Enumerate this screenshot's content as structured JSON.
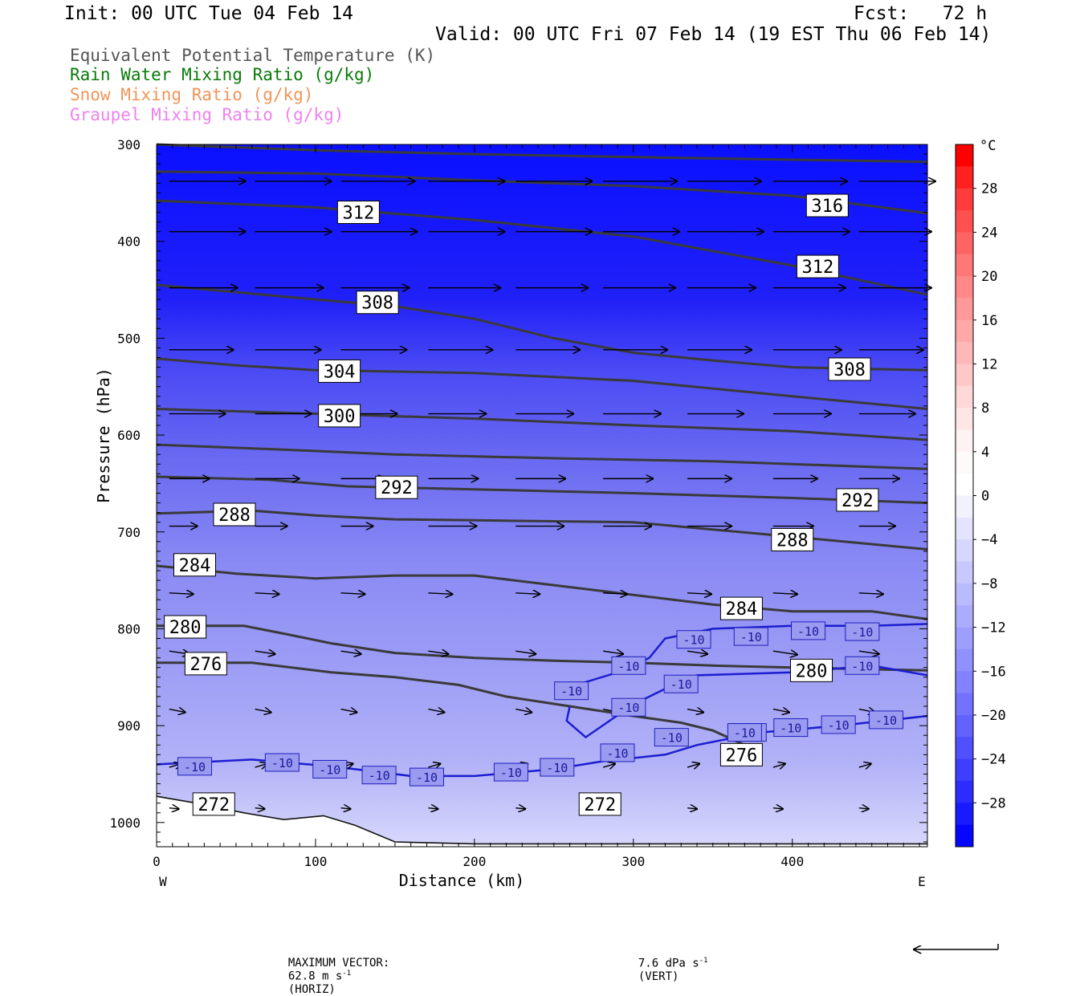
{
  "header": {
    "init": "Init: 00 UTC Tue 04 Feb 14",
    "fcst": "Fcst:   72 h",
    "valid": "Valid: 00 UTC Fri 07 Feb 14 (19 EST Thu 06 Feb 14)"
  },
  "legend": [
    {
      "text": "Equivalent Potential Temperature (K)",
      "color": "#555555"
    },
    {
      "text": "Rain Water Mixing Ratio (g/kg)",
      "color": "#0a7a0a"
    },
    {
      "text": "Snow Mixing Ratio (g/kg)",
      "color": "#f0955a"
    },
    {
      "text": "Graupel Mixing Ratio (g/kg)",
      "color": "#ee82ee"
    }
  ],
  "footer": {
    "max_vector_label": "MAXIMUM VECTOR:",
    "horiz": "62.8 m s",
    "horiz_unit": "(HORIZ)",
    "vert": "7.6 dPa s",
    "vert_unit": "(VERT)",
    "exponent": "-1"
  },
  "chart_data": {
    "type": "heatmap",
    "title": "Equivalent Potential Temperature (K)",
    "xlabel": "Distance (km)",
    "ylabel": "Pressure (hPa)",
    "xlim": [
      0,
      485
    ],
    "ylim": [
      1025,
      300
    ],
    "x_ticks": [
      0,
      100,
      200,
      300,
      400
    ],
    "y_ticks": [
      300,
      400,
      500,
      600,
      700,
      800,
      900,
      1000
    ],
    "x_end_labels": {
      "left": "W",
      "right": "E"
    },
    "colorbar": {
      "unit": "°C",
      "tick_labels": [
        28,
        24,
        20,
        16,
        12,
        8,
        4,
        0,
        -4,
        -8,
        -12,
        -16,
        -20,
        -24,
        -28
      ],
      "levels": [
        32,
        30,
        28,
        26,
        24,
        22,
        20,
        18,
        16,
        14,
        12,
        10,
        8,
        6,
        4,
        2,
        0,
        -2,
        -4,
        -6,
        -8,
        -10,
        -12,
        -14,
        -16,
        -18,
        -20,
        -22,
        -24,
        -26,
        -28,
        -30,
        -32
      ],
      "colors": [
        "#ff0000",
        "#ff2020",
        "#ff3c3c",
        "#ff5050",
        "#ff6464",
        "#ff7878",
        "#ff8888",
        "#ff9898",
        "#ffa8a8",
        "#ffb8b8",
        "#ffc8c8",
        "#ffd8d8",
        "#ffe6e6",
        "#fff2f2",
        "#fffafa",
        "#ffffff",
        "#f2f2ff",
        "#e4e4ff",
        "#d6d6ff",
        "#c8c8ff",
        "#babaff",
        "#acacff",
        "#9e9eff",
        "#9090ff",
        "#8282ff",
        "#7272ff",
        "#6262ff",
        "#5050ff",
        "#3e3eff",
        "#2c2cff",
        "#1a1aff",
        "#0606ff"
      ]
    },
    "theta_e_contours": [
      {
        "value": 272,
        "points": [
          [
            0,
            973
          ],
          [
            25,
            980
          ],
          [
            55,
            990
          ],
          [
            80,
            997
          ],
          [
            105,
            993
          ],
          [
            125,
            1003
          ],
          [
            150,
            1020
          ],
          [
            200,
            1022
          ],
          [
            300,
            1022
          ],
          [
            485,
            1022
          ]
        ]
      },
      {
        "value": 276,
        "points": [
          [
            0,
            835
          ],
          [
            60,
            835
          ],
          [
            110,
            845
          ],
          [
            150,
            850
          ],
          [
            190,
            858
          ],
          [
            220,
            870
          ],
          [
            260,
            880
          ],
          [
            300,
            890
          ],
          [
            330,
            897
          ],
          [
            350,
            905
          ],
          [
            370,
            920
          ]
        ]
      },
      {
        "value": 280,
        "points": [
          [
            0,
            797
          ],
          [
            55,
            797
          ],
          [
            80,
            805
          ],
          [
            110,
            815
          ],
          [
            150,
            825
          ],
          [
            200,
            830
          ],
          [
            250,
            833
          ],
          [
            300,
            835
          ],
          [
            350,
            838
          ],
          [
            400,
            840
          ],
          [
            485,
            843
          ]
        ]
      },
      {
        "value": 284,
        "points": [
          [
            0,
            735
          ],
          [
            50,
            743
          ],
          [
            100,
            748
          ],
          [
            150,
            745
          ],
          [
            200,
            745
          ],
          [
            250,
            755
          ],
          [
            300,
            765
          ],
          [
            350,
            775
          ],
          [
            400,
            782
          ],
          [
            450,
            782
          ],
          [
            485,
            790
          ]
        ]
      },
      {
        "value": 288,
        "points": [
          [
            0,
            681
          ],
          [
            60,
            678
          ],
          [
            100,
            683
          ],
          [
            150,
            687
          ],
          [
            200,
            688
          ],
          [
            300,
            690
          ],
          [
            400,
            705
          ],
          [
            485,
            718
          ]
        ]
      },
      {
        "value": 292,
        "points": [
          [
            0,
            643
          ],
          [
            70,
            646
          ],
          [
            120,
            653
          ],
          [
            200,
            656
          ],
          [
            300,
            660
          ],
          [
            400,
            665
          ],
          [
            485,
            670
          ]
        ]
      },
      {
        "value": 296,
        "points": [
          [
            0,
            610
          ],
          [
            80,
            615
          ],
          [
            150,
            620
          ],
          [
            250,
            624
          ],
          [
            350,
            627
          ],
          [
            485,
            635
          ]
        ]
      },
      {
        "value": 300,
        "points": [
          [
            0,
            573
          ],
          [
            100,
            578
          ],
          [
            200,
            583
          ],
          [
            300,
            590
          ],
          [
            400,
            596
          ],
          [
            485,
            605
          ]
        ]
      },
      {
        "value": 304,
        "points": [
          [
            0,
            521
          ],
          [
            50,
            528
          ],
          [
            100,
            533
          ],
          [
            200,
            536
          ],
          [
            300,
            544
          ],
          [
            400,
            560
          ],
          [
            485,
            573
          ]
        ]
      },
      {
        "value": 308,
        "points": [
          [
            0,
            445
          ],
          [
            100,
            460
          ],
          [
            150,
            467
          ],
          [
            200,
            480
          ],
          [
            250,
            500
          ],
          [
            300,
            515
          ],
          [
            350,
            523
          ],
          [
            400,
            530
          ],
          [
            485,
            533
          ]
        ]
      },
      {
        "value": 312,
        "points": [
          [
            0,
            358
          ],
          [
            100,
            365
          ],
          [
            200,
            378
          ],
          [
            300,
            395
          ],
          [
            400,
            425
          ],
          [
            485,
            455
          ]
        ]
      },
      {
        "value": 316,
        "points": [
          [
            0,
            328
          ],
          [
            100,
            330
          ],
          [
            200,
            337
          ],
          [
            300,
            343
          ],
          [
            400,
            353
          ],
          [
            485,
            371
          ]
        ]
      },
      {
        "value": 320,
        "points": [
          [
            0,
            300
          ],
          [
            100,
            306
          ],
          [
            200,
            310
          ],
          [
            300,
            313
          ],
          [
            485,
            318
          ]
        ]
      }
    ],
    "theta_e_labels": [
      {
        "value": 312,
        "x": 127,
        "p": 370
      },
      {
        "value": 316,
        "x": 422,
        "p": 363
      },
      {
        "value": 312,
        "x": 416,
        "p": 426
      },
      {
        "value": 308,
        "x": 139,
        "p": 463
      },
      {
        "value": 308,
        "x": 436,
        "p": 532
      },
      {
        "value": 304,
        "x": 115,
        "p": 534
      },
      {
        "value": 300,
        "x": 115,
        "p": 580
      },
      {
        "value": 292,
        "x": 151,
        "p": 654
      },
      {
        "value": 292,
        "x": 441,
        "p": 667
      },
      {
        "value": 288,
        "x": 49,
        "p": 682
      },
      {
        "value": 288,
        "x": 400,
        "p": 708
      },
      {
        "value": 284,
        "x": 24,
        "p": 734
      },
      {
        "value": 284,
        "x": 368,
        "p": 779
      },
      {
        "value": 280,
        "x": 18,
        "p": 798
      },
      {
        "value": 280,
        "x": 412,
        "p": 843
      },
      {
        "value": 276,
        "x": 31,
        "p": 836
      },
      {
        "value": 276,
        "x": 368,
        "p": 930
      },
      {
        "value": 272,
        "x": 36,
        "p": 981
      },
      {
        "value": 272,
        "x": 279,
        "p": 981
      }
    ],
    "isotherm_minus10": {
      "value": -10,
      "points": [
        [
          0,
          940
        ],
        [
          60,
          935
        ],
        [
          110,
          942
        ],
        [
          160,
          952
        ],
        [
          200,
          952
        ],
        [
          250,
          945
        ],
        [
          280,
          937
        ],
        [
          320,
          930
        ],
        [
          340,
          920
        ],
        [
          380,
          907
        ],
        [
          430,
          900
        ],
        [
          485,
          890
        ]
      ],
      "upper_points": [
        [
          260,
          880
        ],
        [
          258,
          895
        ],
        [
          270,
          912
        ],
        [
          285,
          895
        ],
        [
          300,
          878
        ],
        [
          320,
          862
        ],
        [
          340,
          848
        ],
        [
          400,
          845
        ],
        [
          450,
          838
        ],
        [
          485,
          848
        ]
      ],
      "top_points": [
        [
          260,
          860
        ],
        [
          290,
          845
        ],
        [
          310,
          830
        ],
        [
          320,
          810
        ],
        [
          350,
          800
        ],
        [
          400,
          797
        ],
        [
          450,
          797
        ],
        [
          485,
          795
        ]
      ],
      "labels": [
        [
          24,
          942
        ],
        [
          79,
          938
        ],
        [
          109,
          945
        ],
        [
          140,
          951
        ],
        [
          170,
          953
        ],
        [
          223,
          948
        ],
        [
          252,
          943
        ],
        [
          290,
          928
        ],
        [
          324,
          912
        ],
        [
          373,
          907
        ],
        [
          399,
          902
        ],
        [
          429,
          899
        ],
        [
          459,
          894
        ],
        [
          261,
          864
        ],
        [
          297,
          881
        ],
        [
          297,
          838
        ],
        [
          330,
          857
        ],
        [
          338,
          811
        ],
        [
          374,
          808
        ],
        [
          410,
          802
        ],
        [
          444,
          803
        ],
        [
          444,
          838
        ],
        [
          370,
          907
        ]
      ]
    },
    "wind_vectors": {
      "rows_p": [
        338,
        390,
        448,
        512,
        578,
        645,
        694,
        763,
        823,
        883,
        943,
        985
      ],
      "x_positions": [
        12,
        66,
        120,
        175,
        230,
        285,
        338,
        392,
        446
      ],
      "lengths": [
        [
          0.95,
          0.95,
          0.92,
          0.95,
          0.95,
          0.92,
          0.92,
          0.92,
          0.95
        ],
        [
          0.95,
          0.95,
          0.95,
          0.95,
          0.95,
          0.95,
          0.95,
          0.95,
          0.9
        ],
        [
          0.85,
          0.85,
          0.85,
          0.9,
          0.9,
          0.9,
          0.85,
          0.9,
          0.9
        ],
        [
          0.8,
          0.82,
          0.82,
          0.8,
          0.8,
          0.8,
          0.8,
          0.85,
          0.8
        ],
        [
          0.7,
          0.7,
          0.7,
          0.72,
          0.72,
          0.72,
          0.7,
          0.72,
          0.7
        ],
        [
          0.5,
          0.55,
          0.55,
          0.62,
          0.62,
          0.62,
          0.55,
          0.55,
          0.5
        ],
        [
          0.35,
          0.4,
          0.4,
          0.6,
          0.6,
          0.6,
          0.55,
          0.5,
          0.45
        ],
        [
          0.3,
          0.3,
          0.3,
          0.3,
          0.3,
          0.3,
          0.3,
          0.3,
          0.3
        ],
        [
          0.25,
          0.25,
          0.25,
          0.25,
          0.25,
          0.25,
          0.25,
          0.3,
          0.25
        ],
        [
          0.2,
          0.2,
          0.2,
          0.2,
          0.2,
          0.2,
          0.2,
          0.2,
          0.2
        ],
        [
          0.15,
          0.15,
          0.15,
          0.15,
          0.15,
          0.15,
          0.15,
          0.15,
          0.15
        ],
        [
          0.12,
          0.12,
          0.12,
          0.12,
          0.12,
          0.12,
          0.12,
          0.12,
          0.12
        ]
      ],
      "tilt": [
        0,
        0,
        0,
        0,
        0,
        0,
        0,
        0.05,
        0.15,
        0.2,
        -0.3,
        0.1
      ]
    }
  }
}
